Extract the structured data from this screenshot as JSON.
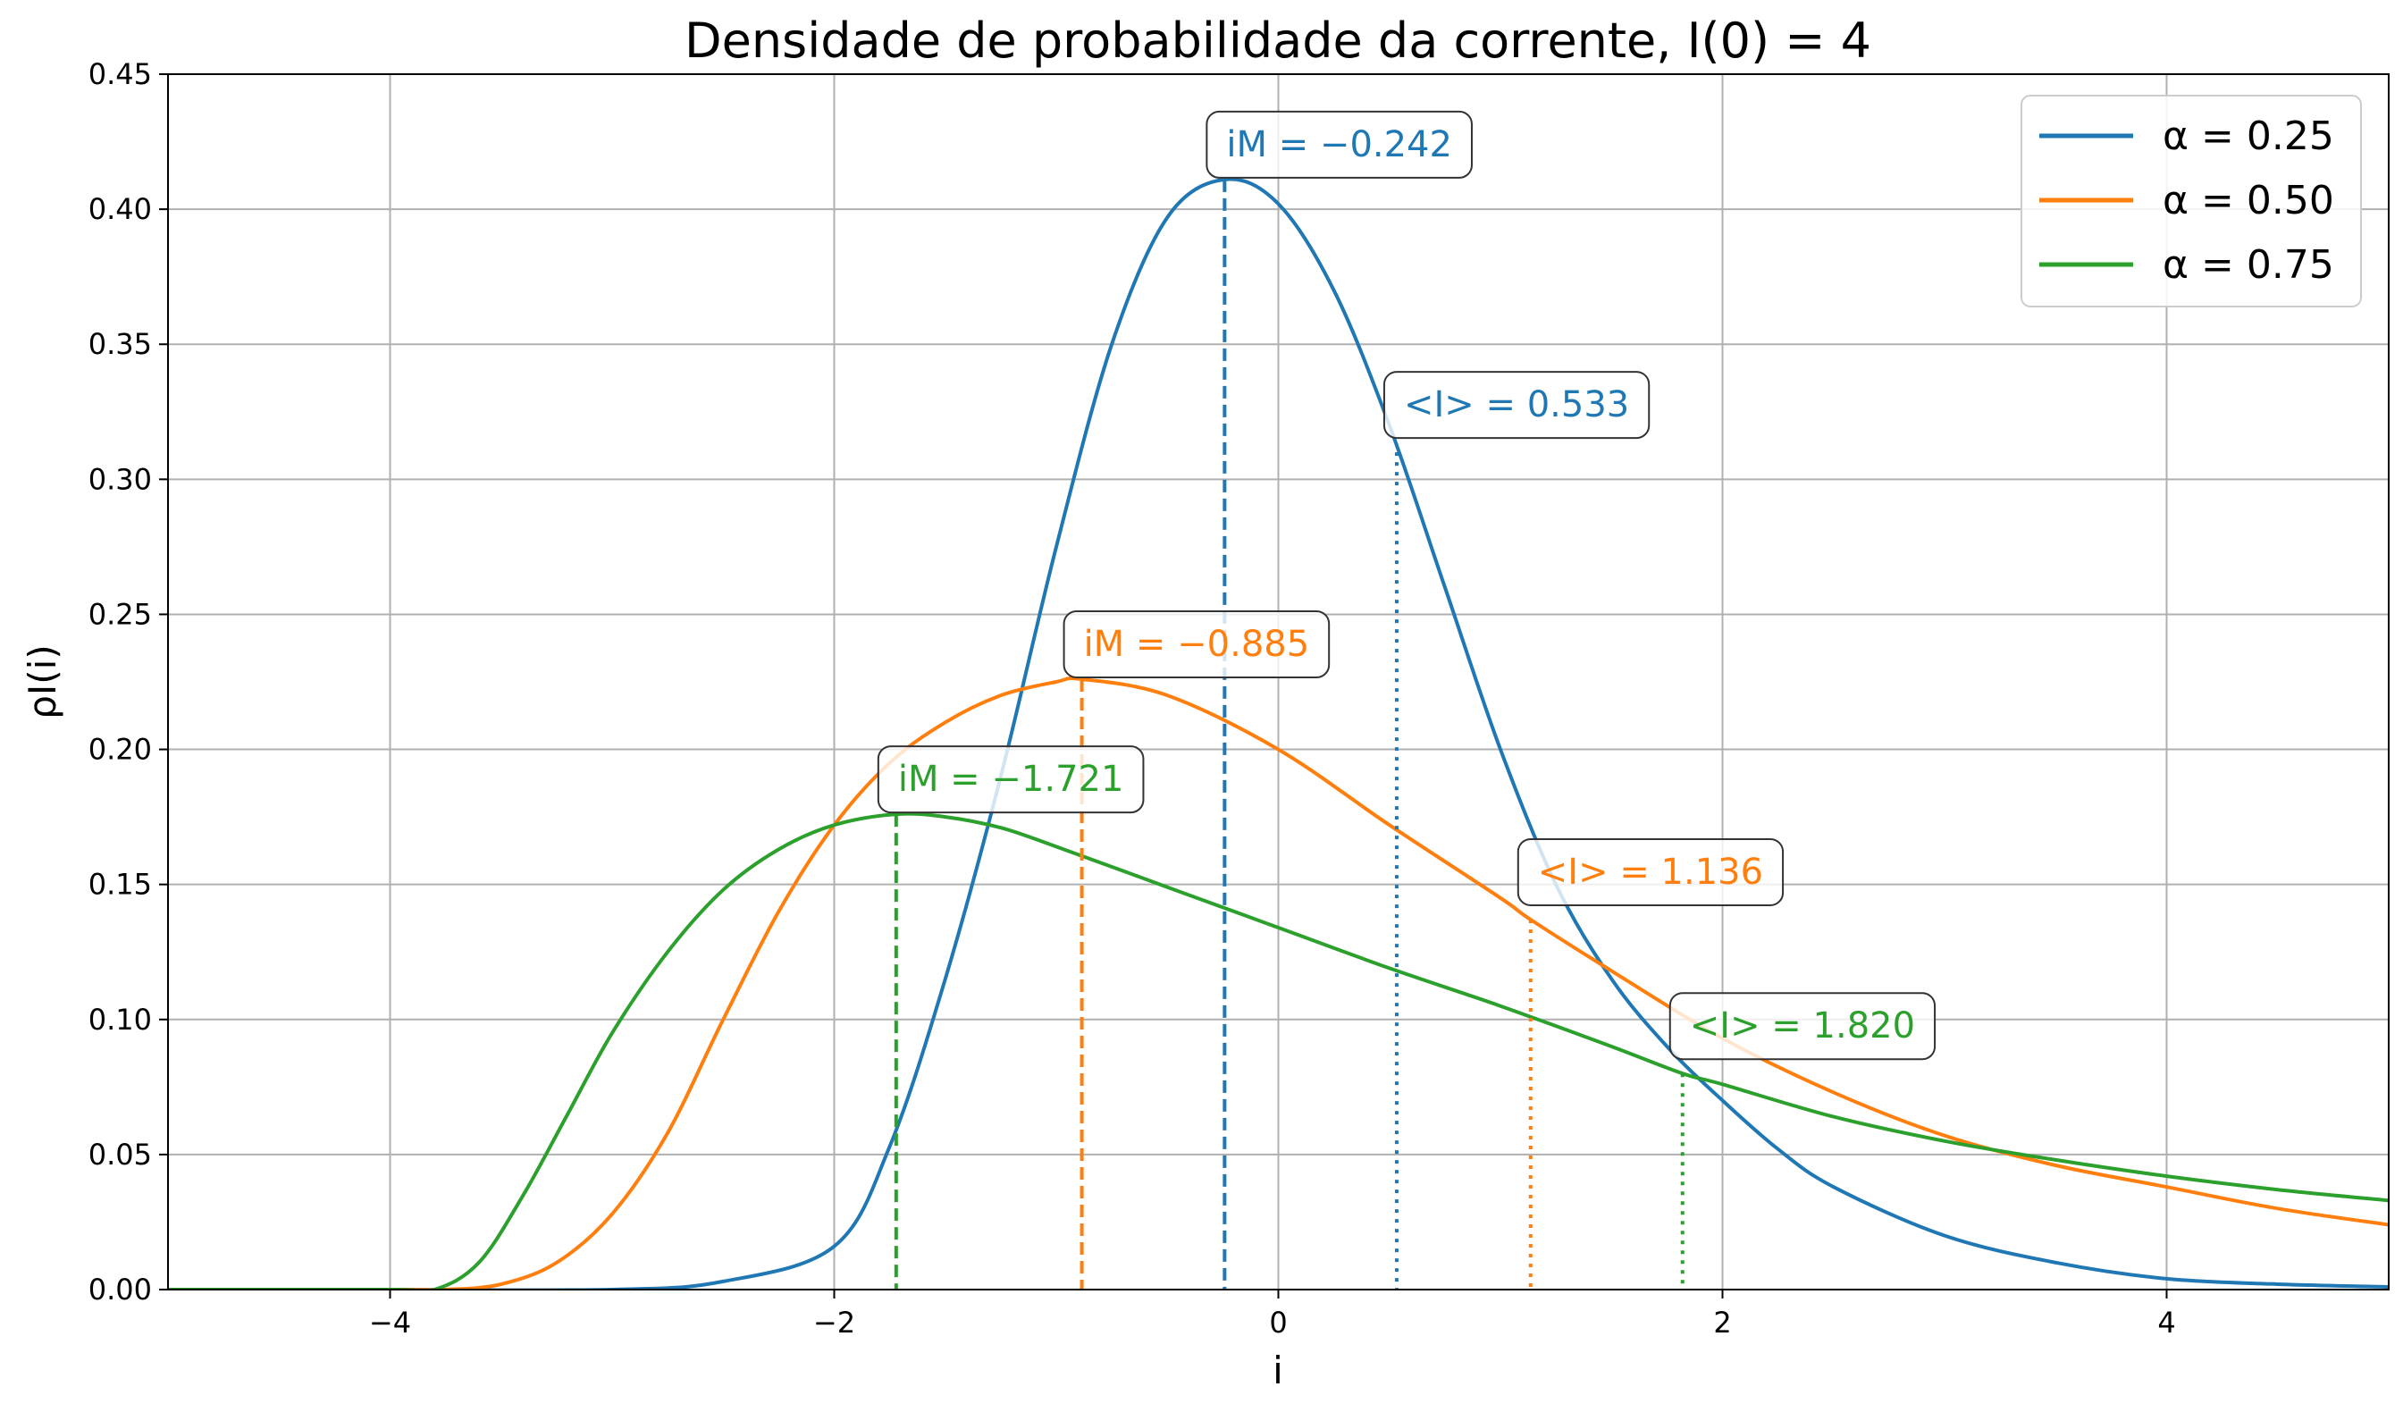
{
  "chart_data": {
    "type": "line",
    "title": "Densidade de probabilidade da corrente, I(0) = 4",
    "xlabel": "i",
    "ylabel": "ρI(i)",
    "xlim": [
      -5,
      5
    ],
    "ylim": [
      0,
      0.45
    ],
    "xticks": [
      -4,
      -2,
      0,
      2,
      4
    ],
    "xtick_labels": [
      "−4",
      "−2",
      "0",
      "2",
      "4"
    ],
    "yticks": [
      0,
      0.05,
      0.1,
      0.15,
      0.2,
      0.25,
      0.3,
      0.35,
      0.4,
      0.45
    ],
    "ytick_labels": [
      "0.00",
      "0.05",
      "0.10",
      "0.15",
      "0.20",
      "0.25",
      "0.30",
      "0.35",
      "0.40",
      "0.45"
    ],
    "grid": true,
    "legend_position": "top-right",
    "series": [
      {
        "name": "α = 0.25",
        "color": "#1f77b4",
        "x": [
          -4.0,
          -3.0,
          -2.5,
          -2.0,
          -1.75,
          -1.5,
          -1.25,
          -1.0,
          -0.75,
          -0.5,
          -0.242,
          0.0,
          0.25,
          0.5,
          0.75,
          1.0,
          1.25,
          1.5,
          1.75,
          2.0,
          2.25,
          2.5,
          3.0,
          3.5,
          4.0,
          4.5,
          5.0
        ],
        "y": [
          0.0,
          0.0,
          0.003,
          0.016,
          0.053,
          0.115,
          0.19,
          0.275,
          0.35,
          0.397,
          0.411,
          0.402,
          0.37,
          0.32,
          0.26,
          0.2,
          0.15,
          0.115,
          0.09,
          0.07,
          0.052,
          0.038,
          0.02,
          0.01,
          0.004,
          0.002,
          0.001
        ],
        "mode_label": "iM = −0.242",
        "mode_x": -0.242,
        "mode_y": 0.411,
        "mean_label": "<I> = 0.533",
        "mean_x": 0.533,
        "mean_y": 0.31
      },
      {
        "name": "α = 0.50",
        "color": "#ff7f0e",
        "x": [
          -4.0,
          -3.75,
          -3.5,
          -3.25,
          -3.0,
          -2.75,
          -2.5,
          -2.25,
          -2.0,
          -1.75,
          -1.5,
          -1.25,
          -1.0,
          -0.885,
          -0.5,
          0.0,
          0.5,
          1.0,
          1.136,
          1.5,
          2.0,
          2.5,
          3.0,
          3.5,
          4.0,
          4.5,
          5.0
        ],
        "y": [
          0.0,
          0.0,
          0.002,
          0.01,
          0.028,
          0.058,
          0.1,
          0.14,
          0.172,
          0.195,
          0.21,
          0.22,
          0.225,
          0.226,
          0.22,
          0.2,
          0.172,
          0.145,
          0.137,
          0.118,
          0.093,
          0.073,
          0.057,
          0.046,
          0.038,
          0.03,
          0.024
        ],
        "mode_label": "iM = −0.885",
        "mode_x": -0.885,
        "mode_y": 0.226,
        "mean_label": "<I> = 1.136",
        "mean_x": 1.136,
        "mean_y": 0.137
      },
      {
        "name": "α = 0.75",
        "color": "#2ca02c",
        "x": [
          -4.0,
          -3.8,
          -3.6,
          -3.4,
          -3.2,
          -3.0,
          -2.75,
          -2.5,
          -2.25,
          -2.0,
          -1.721,
          -1.5,
          -1.25,
          -1.0,
          -0.5,
          0.0,
          0.5,
          1.0,
          1.5,
          1.82,
          2.0,
          2.5,
          3.0,
          3.5,
          4.0,
          4.5,
          5.0
        ],
        "y": [
          0.0,
          0.0,
          0.01,
          0.035,
          0.065,
          0.095,
          0.125,
          0.148,
          0.163,
          0.172,
          0.176,
          0.175,
          0.171,
          0.164,
          0.149,
          0.134,
          0.119,
          0.105,
          0.09,
          0.08,
          0.076,
          0.064,
          0.055,
          0.048,
          0.042,
          0.037,
          0.033
        ],
        "mode_label": "iM = −1.721",
        "mode_x": -1.721,
        "mode_y": 0.176,
        "mean_label": "<I> = 1.820",
        "mean_x": 1.82,
        "mean_y": 0.08
      }
    ]
  }
}
